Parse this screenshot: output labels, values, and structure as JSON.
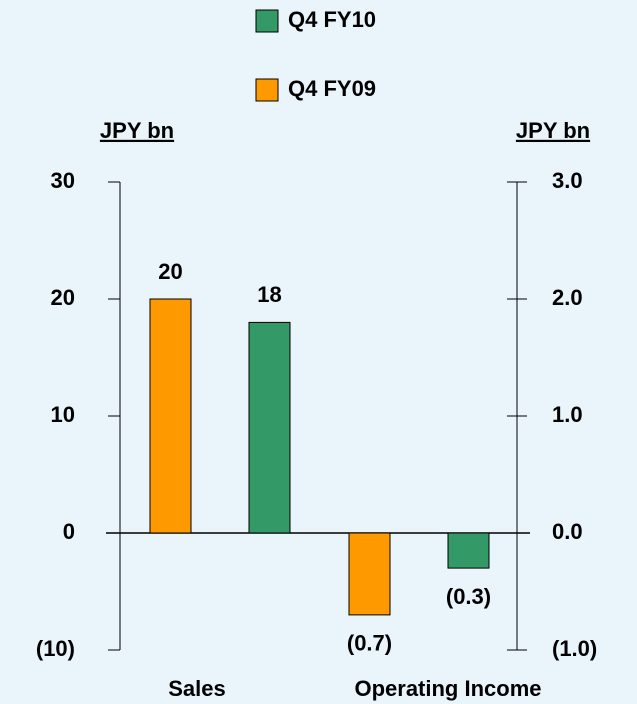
{
  "chart_data": {
    "type": "bar",
    "categories": [
      "Sales",
      "Operating Income"
    ],
    "category_axes": [
      "y",
      "y2"
    ],
    "series": [
      {
        "name": "Q4 FY09",
        "color": "#ff9900",
        "values": [
          20,
          -0.7
        ],
        "value_labels": [
          "20",
          "(0.7)"
        ]
      },
      {
        "name": "Q4 FY10",
        "color": "#339966",
        "values": [
          18,
          -0.3
        ],
        "value_labels": [
          "18",
          "(0.3)"
        ]
      }
    ],
    "ylabel": "JPY bn",
    "y2label": "JPY bn",
    "ylim": [
      -10,
      30
    ],
    "yticks": [
      {
        "value": -10,
        "label": "(10)"
      },
      0,
      10,
      20,
      30
    ],
    "y2lim": [
      -1,
      3
    ],
    "y2ticks": [
      {
        "value": -1,
        "label": "(1.0)"
      },
      {
        "value": 0,
        "label": "0.0"
      },
      {
        "value": 1,
        "label": "1.0"
      },
      {
        "value": 2,
        "label": "2.0"
      },
      {
        "value": 3,
        "label": "3.0"
      }
    ]
  }
}
